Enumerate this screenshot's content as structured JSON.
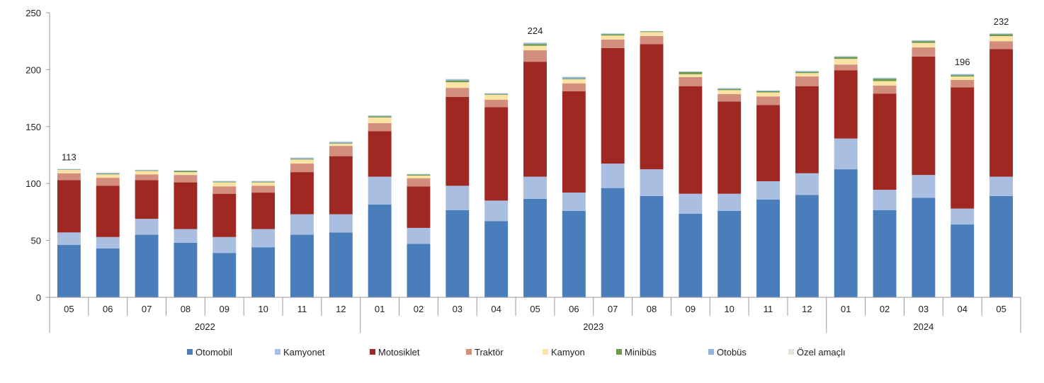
{
  "chart_data": {
    "type": "bar",
    "stacked": true,
    "title": "",
    "xlabel": "",
    "ylabel": "",
    "ylim": [
      0,
      250
    ],
    "yticks": [
      0,
      50,
      100,
      150,
      200,
      250
    ],
    "grid": false,
    "legend_position": "bottom",
    "categories": [
      "05",
      "06",
      "07",
      "08",
      "09",
      "10",
      "11",
      "12",
      "01",
      "02",
      "03",
      "04",
      "05",
      "06",
      "07",
      "08",
      "09",
      "10",
      "11",
      "12",
      "01",
      "02",
      "03",
      "04",
      "05"
    ],
    "year_groups": [
      {
        "label": "2022",
        "count": 8
      },
      {
        "label": "2023",
        "count": 12
      },
      {
        "label": "2024",
        "count": 5
      }
    ],
    "series": [
      {
        "name": "Otomobil",
        "color": "#4a7ebb",
        "values": [
          46,
          43,
          55,
          48,
          39,
          44,
          55,
          57,
          81.5,
          47,
          76.5,
          67,
          86.5,
          76,
          96,
          89,
          73.5,
          76,
          86,
          90,
          112.5,
          76.5,
          87.5,
          64,
          89
        ]
      },
      {
        "name": "Kamyonet",
        "color": "#a9bee0",
        "values": [
          11,
          10,
          14,
          12,
          14,
          16,
          18,
          16,
          24.5,
          14,
          21.5,
          18,
          19.5,
          16,
          21.5,
          23.5,
          17.5,
          15,
          16,
          19,
          27,
          18,
          20,
          14,
          17
        ]
      },
      {
        "name": "Motosiklet",
        "color": "#a02823",
        "values": [
          46,
          45,
          34,
          41,
          38,
          32,
          37,
          51,
          40,
          36.5,
          78,
          82,
          101,
          89,
          101.5,
          110,
          94.5,
          81,
          67,
          76.5,
          60,
          84.5,
          104,
          106.5,
          112
        ]
      },
      {
        "name": "Traktör",
        "color": "#d38d7d",
        "values": [
          6,
          7,
          5,
          6.5,
          6.5,
          6,
          7.5,
          9,
          7,
          7,
          8,
          6.5,
          10,
          7,
          7.5,
          7,
          8,
          6.5,
          7.5,
          8.5,
          5,
          7,
          8,
          6.5,
          7
        ]
      },
      {
        "name": "Kamyon",
        "color": "#fbe3a5",
        "values": [
          3,
          3,
          3,
          2.5,
          3.5,
          3,
          3.5,
          2,
          5,
          2.5,
          5,
          4.5,
          4,
          3.5,
          3.5,
          3.5,
          2.5,
          3.5,
          3.5,
          3,
          5,
          4,
          4,
          3,
          4.5
        ]
      },
      {
        "name": "Minibüs",
        "color": "#6b9a4b",
        "values": [
          0.3,
          0.5,
          0.3,
          1,
          0.5,
          0.5,
          0.5,
          0.5,
          1,
          0.8,
          1.5,
          0.5,
          1.5,
          0.5,
          1,
          0.6,
          2,
          1,
          1,
          1,
          1.5,
          2,
          1.5,
          1,
          1.5
        ]
      },
      {
        "name": "Otobüs",
        "color": "#90b5da",
        "values": [
          0.4,
          0.8,
          0.6,
          0.3,
          0.7,
          0.7,
          1,
          1,
          0.7,
          0.4,
          1,
          0.8,
          1,
          1.5,
          0.7,
          0.2,
          0.3,
          0.7,
          0.7,
          0.7,
          0.7,
          0.7,
          0.7,
          1,
          0.7
        ]
      },
      {
        "name": "Özel amaçlı",
        "color": "#e4e6d6",
        "values": [
          0.3,
          0.5,
          0.3,
          0.2,
          0.3,
          0.3,
          0.5,
          0.5,
          0.3,
          0.3,
          0.5,
          0.2,
          0.5,
          0.5,
          0.3,
          0.2,
          0.2,
          0.3,
          0.3,
          0.3,
          0.3,
          0.3,
          0.3,
          0.5,
          0.3
        ]
      }
    ],
    "data_labels": [
      {
        "index": 0,
        "text": "113"
      },
      {
        "index": 12,
        "text": "224"
      },
      {
        "index": 23,
        "text": "196"
      },
      {
        "index": 24,
        "text": "232"
      }
    ]
  }
}
